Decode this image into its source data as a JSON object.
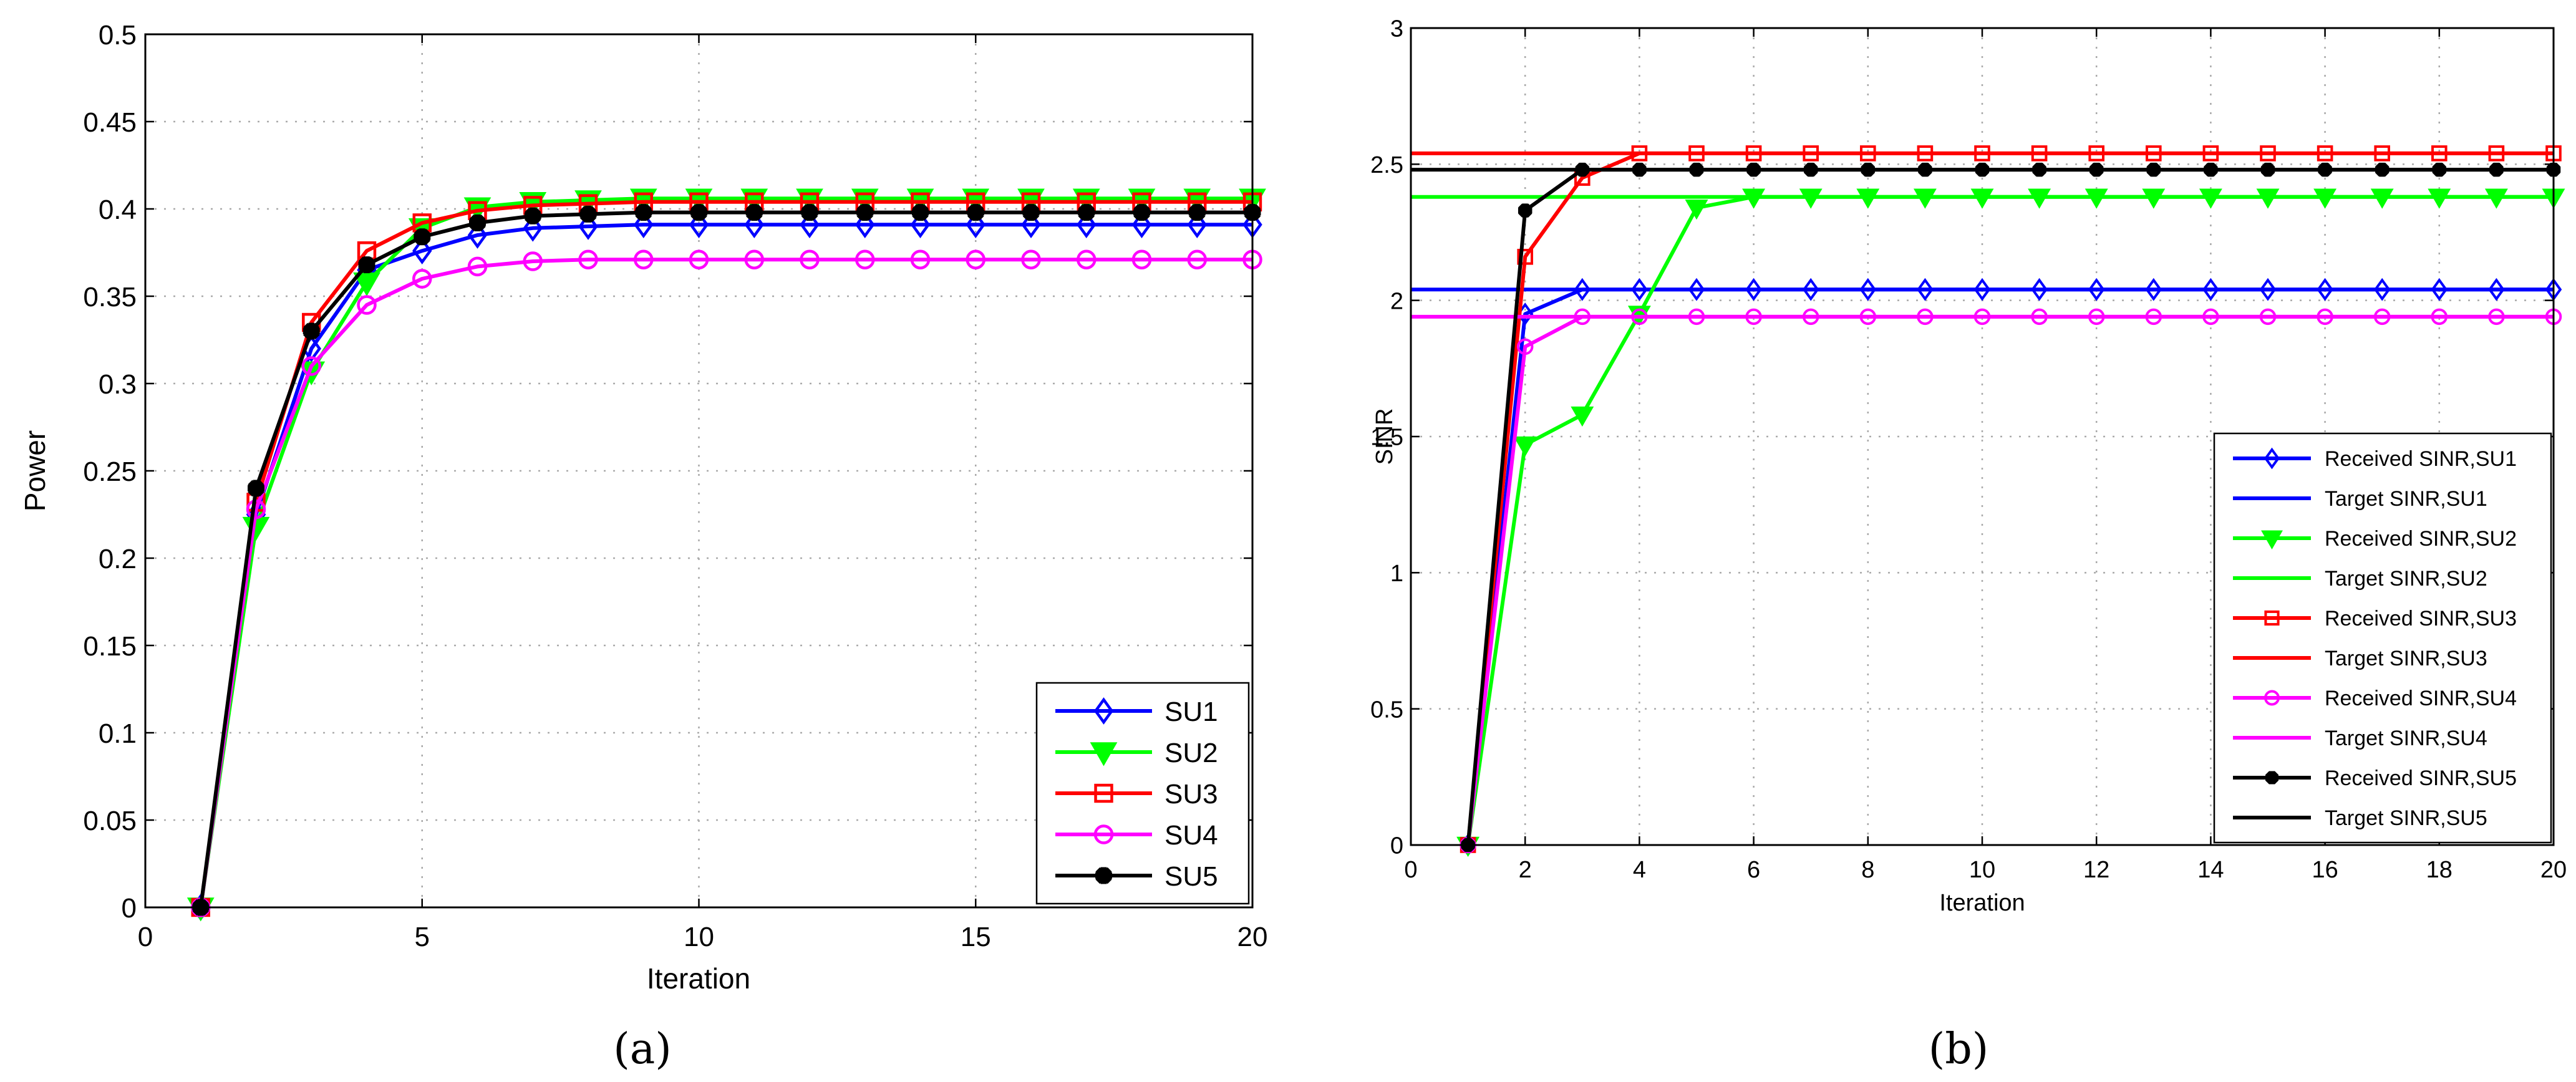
{
  "chart_data": [
    {
      "panel_label": "(a)",
      "type": "line",
      "xlabel": "Iteration",
      "ylabel": "Power",
      "xlim": [
        0,
        20
      ],
      "ylim": [
        0,
        0.5
      ],
      "xticks": [
        0,
        5,
        10,
        15,
        20
      ],
      "yticks": [
        0,
        0.05,
        0.1,
        0.15,
        0.2,
        0.25,
        0.3,
        0.35,
        0.4,
        0.45,
        0.5
      ],
      "grid": true,
      "legend_position": "bottom-right",
      "x": [
        1,
        2,
        3,
        4,
        5,
        6,
        7,
        8,
        9,
        10,
        11,
        12,
        13,
        14,
        15,
        16,
        17,
        18,
        19,
        20
      ],
      "series": [
        {
          "name": "SU1",
          "color": "#0000ff",
          "marker": "diamond",
          "values": [
            0,
            0.225,
            0.32,
            0.365,
            0.376,
            0.385,
            0.389,
            0.39,
            0.391,
            0.391,
            0.391,
            0.391,
            0.391,
            0.391,
            0.391,
            0.391,
            0.391,
            0.391,
            0.391,
            0.391
          ]
        },
        {
          "name": "SU2",
          "color": "#00ff00",
          "marker": "triangle-down",
          "values": [
            0,
            0.218,
            0.307,
            0.358,
            0.389,
            0.401,
            0.404,
            0.405,
            0.406,
            0.406,
            0.406,
            0.406,
            0.406,
            0.406,
            0.406,
            0.406,
            0.406,
            0.406,
            0.406,
            0.406
          ]
        },
        {
          "name": "SU3",
          "color": "#ff0000",
          "marker": "square",
          "values": [
            0,
            0.232,
            0.335,
            0.376,
            0.392,
            0.399,
            0.402,
            0.403,
            0.404,
            0.404,
            0.404,
            0.404,
            0.404,
            0.404,
            0.404,
            0.404,
            0.404,
            0.404,
            0.404,
            0.404
          ]
        },
        {
          "name": "SU4",
          "color": "#ff00ff",
          "marker": "circle",
          "values": [
            0,
            0.228,
            0.31,
            0.345,
            0.36,
            0.367,
            0.37,
            0.371,
            0.371,
            0.371,
            0.371,
            0.371,
            0.371,
            0.371,
            0.371,
            0.371,
            0.371,
            0.371,
            0.371,
            0.371
          ]
        },
        {
          "name": "SU5",
          "color": "#000000",
          "marker": "star",
          "values": [
            0,
            0.24,
            0.33,
            0.368,
            0.384,
            0.392,
            0.396,
            0.397,
            0.398,
            0.398,
            0.398,
            0.398,
            0.398,
            0.398,
            0.398,
            0.398,
            0.398,
            0.398,
            0.398,
            0.398
          ]
        }
      ]
    },
    {
      "panel_label": "(b)",
      "type": "line",
      "xlabel": "Iteration",
      "ylabel": "SINR",
      "xlim": [
        0,
        20
      ],
      "ylim": [
        0,
        3
      ],
      "xticks": [
        0,
        2,
        4,
        6,
        8,
        10,
        12,
        14,
        16,
        18,
        20
      ],
      "yticks": [
        0,
        0.5,
        1,
        1.5,
        2,
        2.5,
        3
      ],
      "grid": true,
      "legend_position": "bottom-right",
      "x": [
        1,
        2,
        3,
        4,
        5,
        6,
        7,
        8,
        9,
        10,
        11,
        12,
        13,
        14,
        15,
        16,
        17,
        18,
        19,
        20
      ],
      "series": [
        {
          "name": "Received SINR,SU1",
          "color": "#0000ff",
          "marker": "diamond",
          "values": [
            0,
            1.95,
            2.04,
            2.04,
            2.04,
            2.04,
            2.04,
            2.04,
            2.04,
            2.04,
            2.04,
            2.04,
            2.04,
            2.04,
            2.04,
            2.04,
            2.04,
            2.04,
            2.04,
            2.04
          ]
        },
        {
          "name": "Target SINR,SU1",
          "color": "#0000ff",
          "marker": "none",
          "target": 2.04
        },
        {
          "name": "Received SINR,SU2",
          "color": "#00ff00",
          "marker": "triangle-down",
          "values": [
            0,
            1.47,
            1.58,
            1.95,
            2.34,
            2.38,
            2.38,
            2.38,
            2.38,
            2.38,
            2.38,
            2.38,
            2.38,
            2.38,
            2.38,
            2.38,
            2.38,
            2.38,
            2.38,
            2.38
          ]
        },
        {
          "name": "Target SINR,SU2",
          "color": "#00ff00",
          "marker": "none",
          "target": 2.38
        },
        {
          "name": "Received SINR,SU3",
          "color": "#ff0000",
          "marker": "square",
          "values": [
            0,
            2.16,
            2.45,
            2.54,
            2.54,
            2.54,
            2.54,
            2.54,
            2.54,
            2.54,
            2.54,
            2.54,
            2.54,
            2.54,
            2.54,
            2.54,
            2.54,
            2.54,
            2.54,
            2.54
          ]
        },
        {
          "name": "Target SINR,SU3",
          "color": "#ff0000",
          "marker": "none",
          "target": 2.54
        },
        {
          "name": "Received SINR,SU4",
          "color": "#ff00ff",
          "marker": "circle",
          "values": [
            0,
            1.83,
            1.94,
            1.94,
            1.94,
            1.94,
            1.94,
            1.94,
            1.94,
            1.94,
            1.94,
            1.94,
            1.94,
            1.94,
            1.94,
            1.94,
            1.94,
            1.94,
            1.94,
            1.94
          ]
        },
        {
          "name": "Target SINR,SU4",
          "color": "#ff00ff",
          "marker": "none",
          "target": 1.94
        },
        {
          "name": "Received SINR,SU5",
          "color": "#000000",
          "marker": "star",
          "values": [
            0,
            2.33,
            2.48,
            2.48,
            2.48,
            2.48,
            2.48,
            2.48,
            2.48,
            2.48,
            2.48,
            2.48,
            2.48,
            2.48,
            2.48,
            2.48,
            2.48,
            2.48,
            2.48,
            2.48
          ]
        },
        {
          "name": "Target SINR,SU5",
          "color": "#000000",
          "marker": "none",
          "target": 2.48
        }
      ]
    }
  ]
}
